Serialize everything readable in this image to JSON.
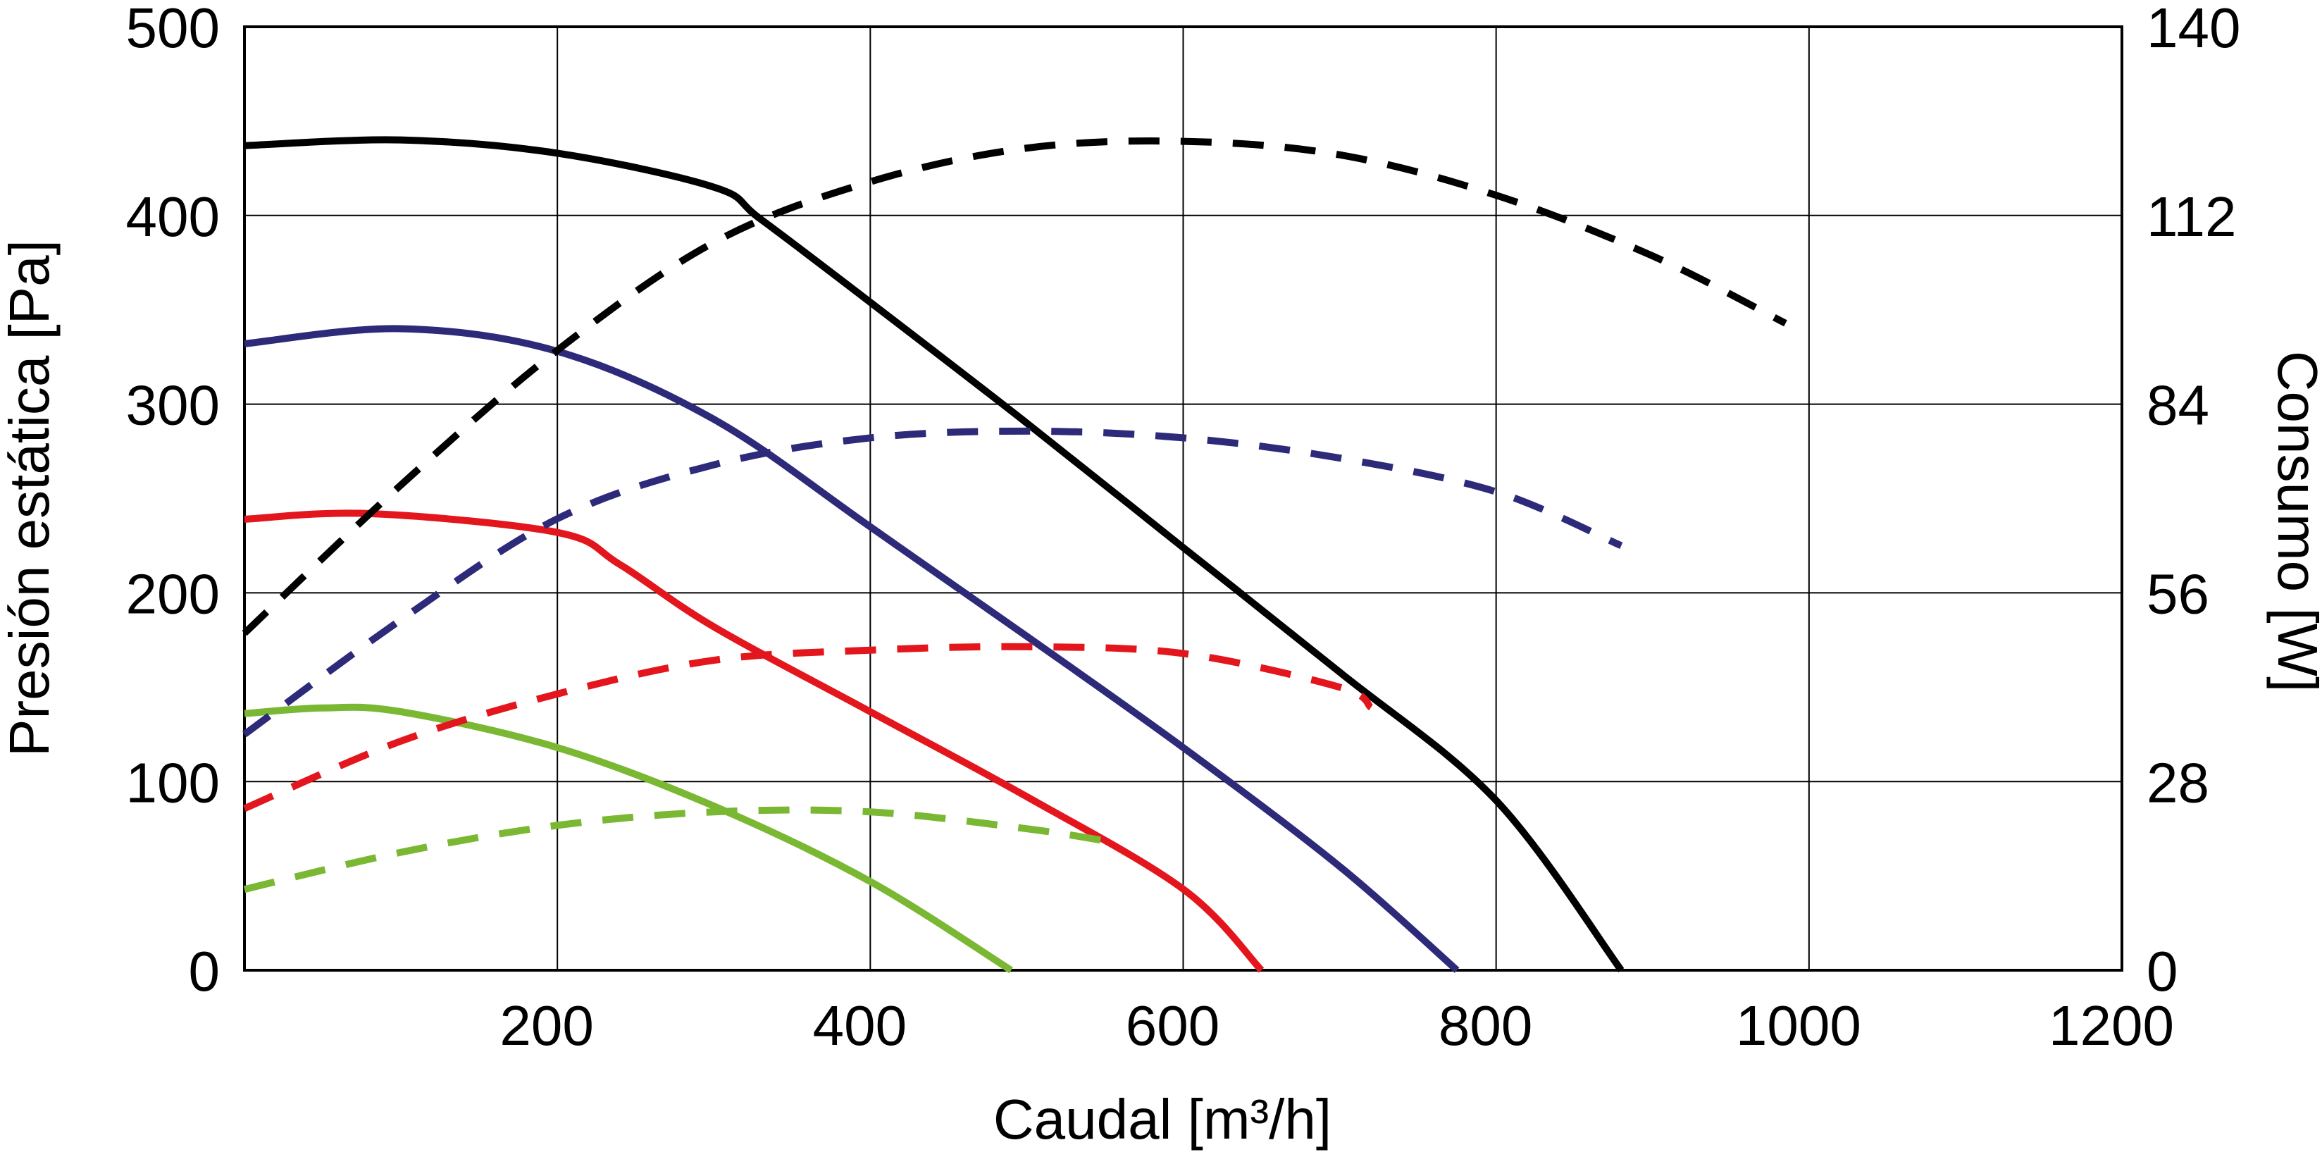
{
  "chart_data": {
    "type": "line",
    "x_label": "Caudal [m³/h]",
    "y_label": "Presión estática [Pa]",
    "y2_label": "Consumo [W]",
    "xlim": [
      0,
      1200
    ],
    "xticks": [
      200,
      400,
      600,
      800,
      1000,
      1200
    ],
    "ylim": [
      0,
      500
    ],
    "yticks": [
      0,
      100,
      200,
      300,
      400,
      500
    ],
    "y2lim": [
      0,
      140
    ],
    "y2ticks": [
      0,
      28,
      56,
      84,
      112,
      140
    ],
    "grid": true,
    "series": [
      {
        "color": "#000000",
        "dashed": false,
        "x": [
          0,
          100,
          200,
          300,
          330,
          400,
          500,
          600,
          700,
          800,
          880
        ],
        "values": [
          437,
          440,
          433,
          415,
          398,
          354,
          290,
          224,
          158,
          90,
          0
        ]
      },
      {
        "color": "#2e2a7a",
        "dashed": false,
        "x": [
          0,
          100,
          200,
          300,
          400,
          500,
          600,
          700,
          775
        ],
        "values": [
          332,
          340,
          328,
          292,
          235,
          177,
          118,
          55,
          0
        ]
      },
      {
        "color": "#e3161e",
        "dashed": false,
        "x": [
          0,
          80,
          200,
          240,
          300,
          400,
          500,
          600,
          650
        ],
        "values": [
          239,
          242,
          232,
          215,
          182,
          137,
          92,
          43,
          0
        ]
      },
      {
        "color": "#7ab833",
        "dashed": false,
        "x": [
          0,
          50,
          100,
          200,
          300,
          400,
          490
        ],
        "values": [
          136,
          139,
          137,
          118,
          87,
          47,
          0
        ]
      },
      {
        "color": "#000000",
        "dashed": true,
        "axis": "y2",
        "x": [
          0,
          100,
          200,
          300,
          400,
          500,
          600,
          700,
          800,
          900,
          985
        ],
        "values": [
          50,
          72,
          92,
          108,
          117,
          122,
          123,
          121,
          115,
          106,
          96
        ]
      },
      {
        "color": "#2e2a7a",
        "dashed": true,
        "axis": "y2",
        "x": [
          0,
          100,
          200,
          300,
          400,
          500,
          600,
          700,
          800,
          880
        ],
        "values": [
          35,
          52,
          67,
          75,
          79,
          80,
          79,
          76,
          71,
          63
        ]
      },
      {
        "color": "#e3161e",
        "dashed": true,
        "axis": "y2",
        "x": [
          0,
          100,
          200,
          300,
          400,
          500,
          600,
          700,
          720
        ],
        "values": [
          24,
          34,
          41,
          46,
          47.5,
          48,
          47,
          42,
          39
        ]
      },
      {
        "color": "#7ab833",
        "dashed": true,
        "axis": "y2",
        "x": [
          0,
          100,
          200,
          300,
          400,
          500,
          555
        ],
        "values": [
          12,
          17.5,
          21.5,
          23.5,
          23.5,
          21,
          19
        ]
      }
    ]
  }
}
